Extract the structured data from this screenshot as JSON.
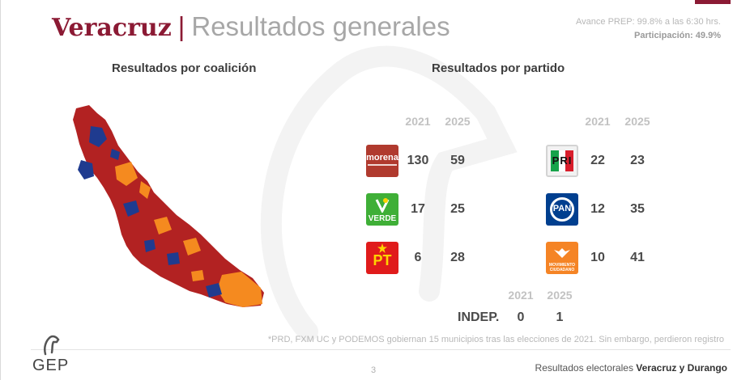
{
  "header": {
    "state": "Veracruz",
    "separator": "|",
    "subtitle": "Resultados generales",
    "avance": "Avance PREP: 99.8% a las 6:30 hrs.",
    "participacion_label": "Participación:",
    "participacion_value": "49.9%"
  },
  "sections": {
    "coalition_title": "Resultados por coalición",
    "party_title": "Resultados por partido"
  },
  "map": {
    "colors": {
      "morena_coalition": "#b22222",
      "pan": "#1f3b8f",
      "mc": "#f58a1f"
    }
  },
  "parties_left": {
    "year_a": "2021",
    "year_b": "2025",
    "rows": [
      {
        "name": "morena",
        "logo_text": "morena",
        "y2021": "130",
        "y2025": "59",
        "color": "#b03a2e"
      },
      {
        "name": "verde",
        "logo_text": "VERDE",
        "y2021": "17",
        "y2025": "25",
        "color": "#3faf37"
      },
      {
        "name": "pt",
        "logo_text": "PT",
        "y2021": "6",
        "y2025": "28",
        "color": "#e01b1b"
      }
    ]
  },
  "parties_right": {
    "year_a": "2021",
    "year_b": "2025",
    "rows": [
      {
        "name": "pri",
        "logo_text": "PRI",
        "y2021": "22",
        "y2025": "23",
        "color": "#d81e2c"
      },
      {
        "name": "pan",
        "logo_text": "PAN",
        "y2021": "12",
        "y2025": "35",
        "color": "#003f8f"
      },
      {
        "name": "movimiento-ciudadano",
        "logo_text": "MOVIMIENTO CIUDADANO",
        "y2021": "10",
        "y2025": "41",
        "color": "#f58425"
      }
    ]
  },
  "independientes": {
    "label": "INDEP.",
    "year_a": "2021",
    "year_b": "2025",
    "y2021": "0",
    "y2025": "1"
  },
  "footnote": "*PRD, FXM UC y PODEMOS gobiernan 15 municipios tras las elecciones de 2021. Sin embargo, perdieron registro",
  "footer": {
    "logo_text": "GEP",
    "page": "3",
    "text_prefix": "Resultados electorales ",
    "text_bold": "Veracruz y Durango"
  }
}
